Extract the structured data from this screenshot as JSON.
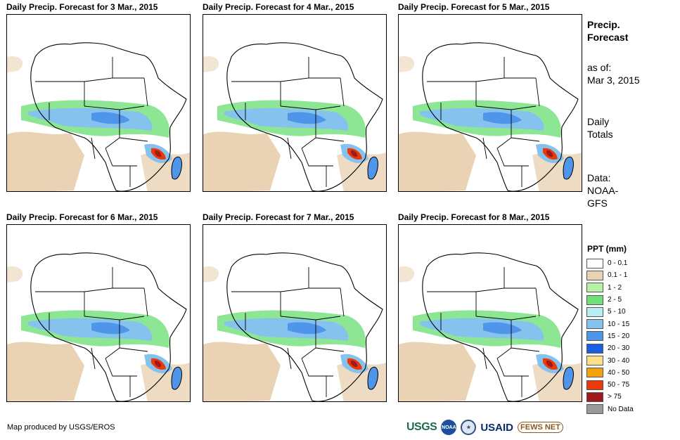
{
  "panels": [
    {
      "title": "Daily Precip. Forecast for 3 Mar., 2015"
    },
    {
      "title": "Daily Precip. Forecast for 4 Mar., 2015"
    },
    {
      "title": "Daily Precip. Forecast for 5 Mar., 2015"
    },
    {
      "title": "Daily Precip. Forecast for 6 Mar., 2015"
    },
    {
      "title": "Daily Precip. Forecast for 7 Mar., 2015"
    },
    {
      "title": "Daily Precip. Forecast for 8 Mar., 2015"
    }
  ],
  "sidebar": {
    "title_line1": "Precip.",
    "title_line2": "Forecast",
    "asof_label": "as of:",
    "asof_date": "Mar 3, 2015",
    "totals_line1": "Daily",
    "totals_line2": "Totals",
    "data_line1": "Data:",
    "data_line2": "NOAA-",
    "data_line3": "GFS"
  },
  "legend": {
    "title": "PPT (mm)",
    "items": [
      {
        "label": "0 - 0.1",
        "color": "#ffffff"
      },
      {
        "label": "0.1 - 1",
        "color": "#e9d3b4"
      },
      {
        "label": "1 - 2",
        "color": "#b6f2a6"
      },
      {
        "label": "2 - 5",
        "color": "#6fe078"
      },
      {
        "label": "5 - 10",
        "color": "#b6eef2"
      },
      {
        "label": "10 - 15",
        "color": "#86c2ee"
      },
      {
        "label": "15 - 20",
        "color": "#4f95ea"
      },
      {
        "label": "20 - 30",
        "color": "#1a5ee0"
      },
      {
        "label": "30 - 40",
        "color": "#fde08a"
      },
      {
        "label": "40 - 50",
        "color": "#f3a20c"
      },
      {
        "label": "50 - 75",
        "color": "#ea3a0c"
      },
      {
        "label": "> 75",
        "color": "#a01a1a"
      },
      {
        "label": "No Data",
        "color": "#9a9a9a"
      }
    ]
  },
  "footer": {
    "credit": "Map produced by USGS/EROS",
    "logos": {
      "usgs": "USGS",
      "noaa": "NOAA",
      "usaid": "USAID",
      "fews": "FEWS NET"
    }
  }
}
